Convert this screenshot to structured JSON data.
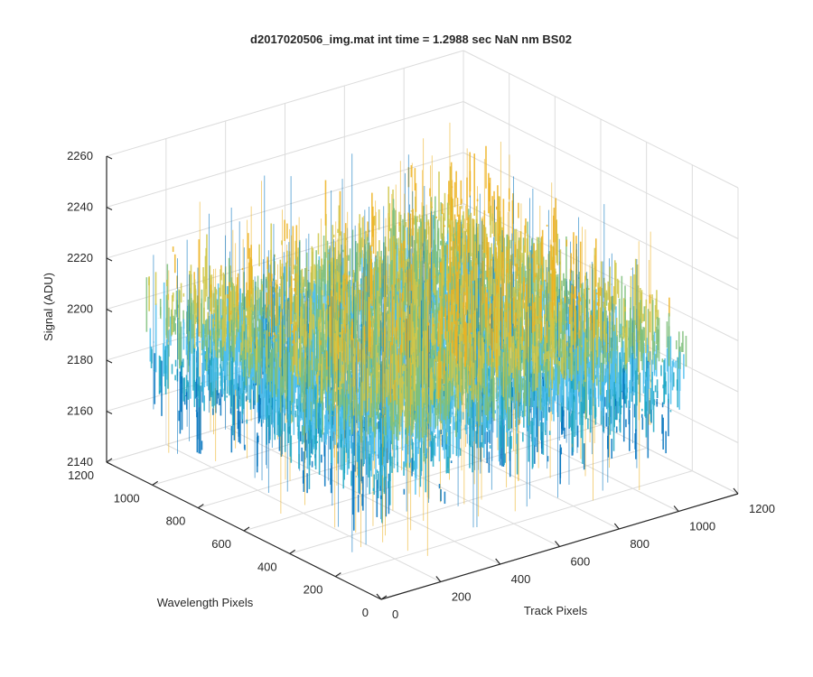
{
  "chart_data": {
    "type": "surface",
    "title": "d2017020506_img.mat int time = 1.2988 sec  NaN nm BS02",
    "xlabel": "Track Pixels",
    "ylabel": "Wavelength Pixels",
    "zlabel": "Signal (ADU)",
    "xlim": [
      0,
      1200
    ],
    "ylim": [
      0,
      1200
    ],
    "zlim": [
      2140,
      2260
    ],
    "x_ticks": [
      "0",
      "200",
      "400",
      "600",
      "800",
      "1000",
      "1200"
    ],
    "y_ticks": [
      "0",
      "200",
      "400",
      "600",
      "800",
      "1000",
      "1200"
    ],
    "z_ticks": [
      "2140",
      "2160",
      "2180",
      "2200",
      "2220",
      "2240",
      "2260"
    ],
    "data_extent": {
      "x": [
        0,
        1024
      ],
      "y": [
        0,
        1024
      ]
    },
    "signal_mean": 2200,
    "signal_range": [
      2150,
      2250
    ],
    "grid": true,
    "colormap": [
      "#0072bd",
      "#21a8c4",
      "#4dbeee",
      "#7fbf7b",
      "#cfc74a",
      "#edb120"
    ]
  }
}
